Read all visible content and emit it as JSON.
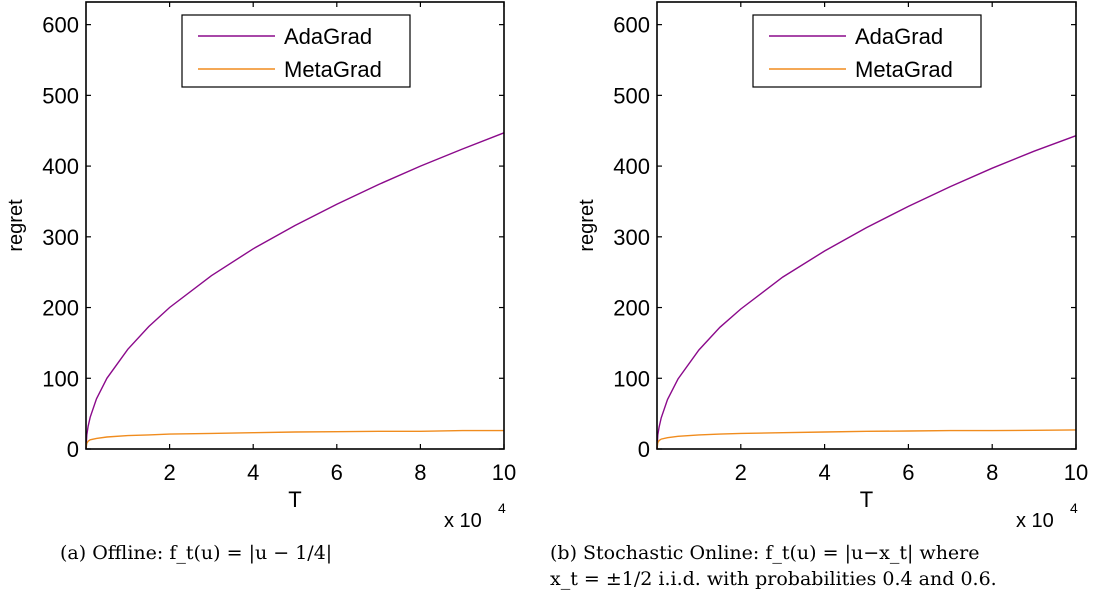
{
  "colors": {
    "adagrad": "#8b0a8b",
    "metagrad": "#f08c1e"
  },
  "chart_data": [
    {
      "type": "line",
      "xlabel": "T",
      "ylabel": "regret",
      "x_multiplier": "x 10",
      "x_multiplier_exp": "4",
      "xlim": [
        0,
        10
      ],
      "ylim": [
        0,
        632
      ],
      "xticks": [
        "2",
        "4",
        "6",
        "8",
        "10"
      ],
      "yticks": [
        "0",
        "100",
        "200",
        "300",
        "400",
        "500",
        "600"
      ],
      "grid": false,
      "legend_position": "top-center",
      "caption": "(a) Offline: f_t(u) = |u − 1/4|",
      "x": [
        0,
        0.02,
        0.05,
        0.1,
        0.25,
        0.5,
        1,
        1.5,
        2,
        3,
        4,
        5,
        6,
        7,
        8,
        9,
        10
      ],
      "series": [
        {
          "name": "AdaGrad",
          "values": [
            0,
            20,
            32,
            45,
            71,
            100,
            141,
            173,
            200,
            245,
            283,
            316,
            346,
            374,
            400,
            424,
            447
          ]
        },
        {
          "name": "MetaGrad",
          "values": [
            0,
            8,
            11,
            13,
            15,
            17,
            19,
            20,
            21,
            22,
            23,
            24,
            24.5,
            25,
            25,
            26,
            26
          ]
        }
      ]
    },
    {
      "type": "line",
      "xlabel": "T",
      "ylabel": "regret",
      "x_multiplier": "x 10",
      "x_multiplier_exp": "4",
      "xlim": [
        0,
        10
      ],
      "ylim": [
        0,
        632
      ],
      "xticks": [
        "2",
        "4",
        "6",
        "8",
        "10"
      ],
      "yticks": [
        "0",
        "100",
        "200",
        "300",
        "400",
        "500",
        "600"
      ],
      "grid": false,
      "legend_position": "top-center",
      "caption_line1": "(b) Stochastic Online: f_t(u) = |u−x_t| where",
      "caption_line2": "x_t = ±1/2 i.i.d. with probabilities 0.4 and 0.6.",
      "x": [
        0,
        0.02,
        0.05,
        0.1,
        0.25,
        0.5,
        1,
        1.5,
        2,
        3,
        4,
        5,
        6,
        7,
        8,
        9,
        10
      ],
      "series": [
        {
          "name": "AdaGrad",
          "values": [
            0,
            20,
            31,
            44,
            70,
            99,
            140,
            172,
            198,
            243,
            280,
            313,
            343,
            371,
            397,
            421,
            443
          ]
        },
        {
          "name": "MetaGrad",
          "values": [
            0,
            9,
            12,
            14,
            16,
            18,
            20,
            21,
            22,
            23,
            24,
            25,
            25.5,
            26,
            26,
            26.5,
            27
          ]
        }
      ]
    }
  ]
}
